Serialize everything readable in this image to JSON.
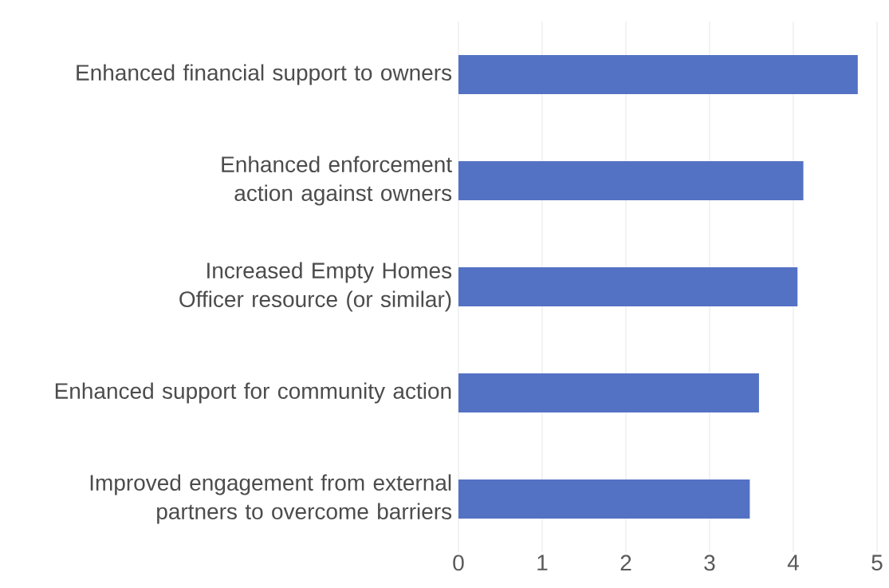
{
  "chart_data": {
    "type": "bar",
    "orientation": "horizontal",
    "categories": [
      "Enhanced financial support to owners",
      "Enhanced enforcement action against owners",
      "Increased Empty Homes Officer resource (or similar)",
      "Enhanced support for community action",
      "Improved engagement from external partners to overcome barriers"
    ],
    "values": [
      4.77,
      4.12,
      4.05,
      3.59,
      3.48
    ],
    "color": "#5472c4",
    "xlim": [
      0,
      5
    ],
    "xticks": [
      0,
      1,
      2,
      3,
      4,
      5
    ],
    "grid": "x"
  }
}
